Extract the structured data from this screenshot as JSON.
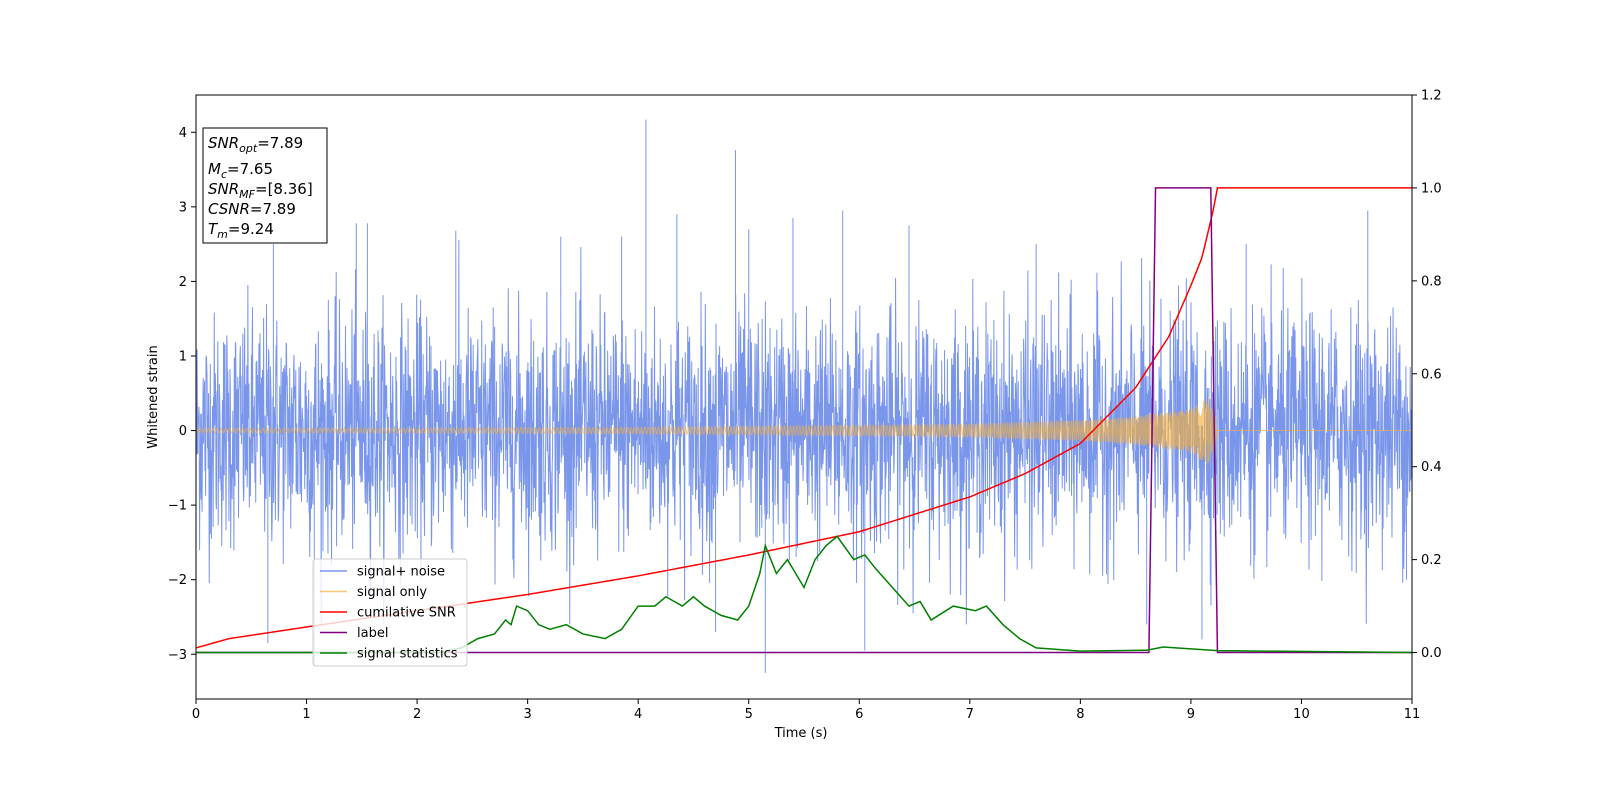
{
  "chart_data": {
    "type": "line",
    "title": "",
    "xlabel": "Time (s)",
    "ylabel": "Whitened strain",
    "xlim": [
      0,
      11
    ],
    "ylim_left": [
      -3.6,
      4.5
    ],
    "ylim_right": [
      -0.1,
      1.2
    ],
    "x_ticks": [
      0,
      1,
      2,
      3,
      4,
      5,
      6,
      7,
      8,
      9,
      10,
      11
    ],
    "y_ticks_left": [
      -3,
      -2,
      -1,
      0,
      1,
      2,
      3,
      4
    ],
    "y_ticks_left_labels": [
      "−3",
      "−2",
      "−1",
      "0",
      "1",
      "2",
      "3",
      "4"
    ],
    "y_ticks_right": [
      "0.0",
      "0.2",
      "0.4",
      "0.6",
      "0.8",
      "1.0",
      "1.2"
    ],
    "grid": false,
    "legend_position": "lower-left",
    "annotation": {
      "lines": [
        {
          "base": "SNR",
          "sub": "opt",
          "value": "=7.89"
        },
        {
          "base": "M",
          "sub": "c",
          "value": "=7.65"
        },
        {
          "base": "SNR",
          "sub": "MF",
          "value": "=[8.36]"
        },
        {
          "base": "CSNR",
          "sub": "",
          "value": "=7.89"
        },
        {
          "base": "T",
          "sub": "m",
          "value": "=9.24"
        }
      ]
    },
    "series": [
      {
        "name": "signal+ noise",
        "axis": "left",
        "color": "#4169e1",
        "description_type": "noise",
        "std": 0.78,
        "spikes": [
          [
            0.65,
            -2.85
          ],
          [
            0.7,
            2.5
          ],
          [
            1.07,
            -3.15
          ],
          [
            1.45,
            2.78
          ],
          [
            1.55,
            2.78
          ],
          [
            2.35,
            2.68
          ],
          [
            3.3,
            2.6
          ],
          [
            3.85,
            2.6
          ],
          [
            4.07,
            4.17
          ],
          [
            4.35,
            2.9
          ],
          [
            4.7,
            -2.7
          ],
          [
            4.88,
            3.76
          ],
          [
            5.0,
            2.7
          ],
          [
            5.15,
            -3.25
          ],
          [
            5.4,
            2.85
          ],
          [
            5.85,
            2.95
          ],
          [
            6.05,
            -2.95
          ],
          [
            6.45,
            2.75
          ],
          [
            7.6,
            2.5
          ],
          [
            8.6,
            -2.6
          ],
          [
            9.1,
            -2.8
          ],
          [
            9.5,
            2.5
          ],
          [
            10.6,
            2.95
          ],
          [
            10.95,
            -2.0
          ]
        ]
      },
      {
        "name": "signal only",
        "axis": "left",
        "color": "#f5b041",
        "description_type": "chirp",
        "merger_time": 9.24,
        "amplitude_points": [
          [
            0,
            0.03
          ],
          [
            2,
            0.035
          ],
          [
            4,
            0.045
          ],
          [
            6,
            0.07
          ],
          [
            7,
            0.09
          ],
          [
            8,
            0.14
          ],
          [
            8.5,
            0.19
          ],
          [
            9.0,
            0.3
          ],
          [
            9.2,
            0.5
          ],
          [
            9.24,
            0.0
          ]
        ]
      },
      {
        "name": "cumilative SNR",
        "axis": "right",
        "color": "#ff0000",
        "points": [
          [
            0,
            0.01
          ],
          [
            0.3,
            0.03
          ],
          [
            1,
            0.055
          ],
          [
            2,
            0.09
          ],
          [
            3,
            0.125
          ],
          [
            4,
            0.165
          ],
          [
            5,
            0.21
          ],
          [
            6,
            0.26
          ],
          [
            7,
            0.335
          ],
          [
            7.5,
            0.385
          ],
          [
            8,
            0.45
          ],
          [
            8.5,
            0.57
          ],
          [
            8.8,
            0.68
          ],
          [
            9.0,
            0.79
          ],
          [
            9.1,
            0.85
          ],
          [
            9.2,
            0.95
          ],
          [
            9.24,
            1.0
          ],
          [
            11,
            1.0
          ]
        ]
      },
      {
        "name": "label",
        "axis": "right",
        "color": "#800080",
        "points": [
          [
            0,
            0.0
          ],
          [
            8.62,
            0.0
          ],
          [
            8.68,
            1.0
          ],
          [
            9.18,
            1.0
          ],
          [
            9.24,
            0.0
          ],
          [
            11,
            0.0
          ]
        ]
      },
      {
        "name": "signal statistics",
        "axis": "right",
        "color": "#008000",
        "points": [
          [
            0,
            0.0
          ],
          [
            2.2,
            0.0
          ],
          [
            2.4,
            0.01
          ],
          [
            2.55,
            0.03
          ],
          [
            2.7,
            0.04
          ],
          [
            2.8,
            0.07
          ],
          [
            2.85,
            0.06
          ],
          [
            2.9,
            0.1
          ],
          [
            3.0,
            0.09
          ],
          [
            3.1,
            0.06
          ],
          [
            3.2,
            0.05
          ],
          [
            3.35,
            0.06
          ],
          [
            3.5,
            0.04
          ],
          [
            3.7,
            0.03
          ],
          [
            3.85,
            0.05
          ],
          [
            4.0,
            0.1
          ],
          [
            4.15,
            0.1
          ],
          [
            4.25,
            0.12
          ],
          [
            4.4,
            0.1
          ],
          [
            4.5,
            0.12
          ],
          [
            4.6,
            0.1
          ],
          [
            4.75,
            0.08
          ],
          [
            4.9,
            0.07
          ],
          [
            5.0,
            0.1
          ],
          [
            5.1,
            0.17
          ],
          [
            5.15,
            0.23
          ],
          [
            5.25,
            0.17
          ],
          [
            5.35,
            0.2
          ],
          [
            5.5,
            0.14
          ],
          [
            5.6,
            0.2
          ],
          [
            5.7,
            0.23
          ],
          [
            5.8,
            0.25
          ],
          [
            5.95,
            0.2
          ],
          [
            6.05,
            0.21
          ],
          [
            6.15,
            0.18
          ],
          [
            6.3,
            0.14
          ],
          [
            6.45,
            0.1
          ],
          [
            6.55,
            0.11
          ],
          [
            6.65,
            0.07
          ],
          [
            6.85,
            0.1
          ],
          [
            7.05,
            0.09
          ],
          [
            7.15,
            0.1
          ],
          [
            7.3,
            0.06
          ],
          [
            7.45,
            0.03
          ],
          [
            7.6,
            0.01
          ],
          [
            8.0,
            0.003
          ],
          [
            8.6,
            0.005
          ],
          [
            8.75,
            0.012
          ],
          [
            9.0,
            0.008
          ],
          [
            9.24,
            0.004
          ],
          [
            11,
            0.0
          ]
        ]
      }
    ]
  }
}
